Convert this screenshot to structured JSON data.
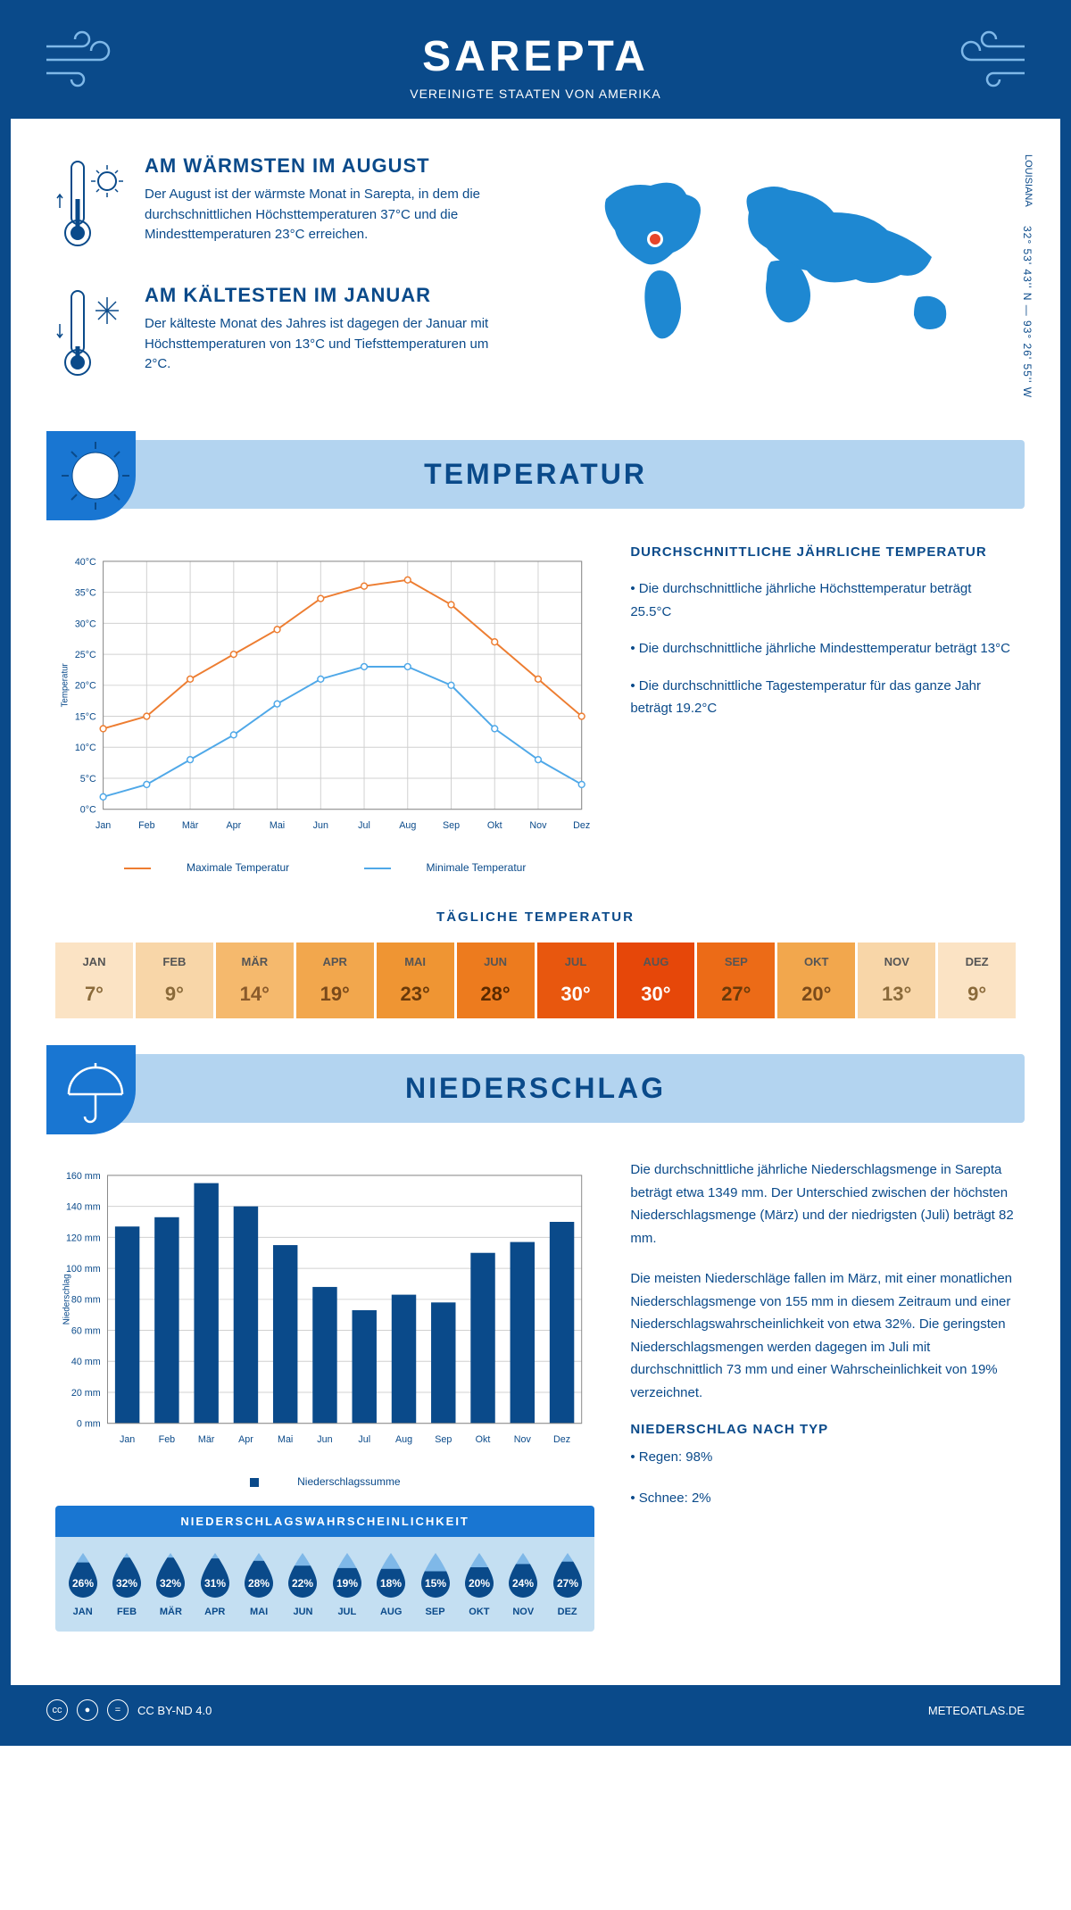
{
  "header": {
    "title": "SAREPTA",
    "subtitle": "VEREINIGTE STAATEN VON AMERIKA"
  },
  "intro": {
    "warmest": {
      "heading": "AM WÄRMSTEN IM AUGUST",
      "text": "Der August ist der wärmste Monat in Sarepta, in dem die durchschnittlichen Höchsttemperaturen 37°C und die Mindesttemperaturen 23°C erreichen."
    },
    "coldest": {
      "heading": "AM KÄLTESTEN IM JANUAR",
      "text": "Der kälteste Monat des Jahres ist dagegen der Januar mit Höchsttemperaturen von 13°C und Tiefsttemperaturen um 2°C."
    },
    "region": "LOUISIANA",
    "coords": "32° 53' 43'' N — 93° 26' 55'' W"
  },
  "temperature": {
    "section_title": "TEMPERATUR",
    "info_heading": "DURCHSCHNITTLICHE JÄHRLICHE TEMPERATUR",
    "bullet1": "• Die durchschnittliche jährliche Höchsttemperatur beträgt 25.5°C",
    "bullet2": "• Die durchschnittliche jährliche Mindesttemperatur beträgt 13°C",
    "bullet3": "• Die durchschnittliche Tagestemperatur für das ganze Jahr beträgt 19.2°C",
    "chart": {
      "type": "line",
      "months": [
        "Jan",
        "Feb",
        "Mär",
        "Apr",
        "Mai",
        "Jun",
        "Jul",
        "Aug",
        "Sep",
        "Okt",
        "Nov",
        "Dez"
      ],
      "max_values": [
        13,
        15,
        21,
        25,
        29,
        34,
        36,
        37,
        33,
        27,
        21,
        15
      ],
      "min_values": [
        2,
        4,
        8,
        12,
        17,
        21,
        23,
        23,
        20,
        13,
        8,
        4
      ],
      "max_color": "#ed7d31",
      "min_color": "#4fa8e8",
      "grid_color": "#d0d0d0",
      "ylim": [
        0,
        40
      ],
      "ytick_step": 5,
      "ylabel": "Temperatur",
      "max_label": "Maximale Temperatur",
      "min_label": "Minimale Temperatur"
    },
    "daily": {
      "heading": "TÄGLICHE TEMPERATUR",
      "months": [
        "JAN",
        "FEB",
        "MÄR",
        "APR",
        "MAI",
        "JUN",
        "JUL",
        "AUG",
        "SEP",
        "OKT",
        "NOV",
        "DEZ"
      ],
      "values": [
        "7°",
        "9°",
        "14°",
        "19°",
        "23°",
        "28°",
        "30°",
        "30°",
        "27°",
        "20°",
        "13°",
        "9°"
      ],
      "bg_colors": [
        "#fbe3c4",
        "#f8d6a8",
        "#f5b96d",
        "#f2a74d",
        "#ef9533",
        "#ed7b1e",
        "#e8570e",
        "#e64709",
        "#ec6b17",
        "#f2a74d",
        "#f8d6a8",
        "#fbe3c4"
      ],
      "text_colors": [
        "#8a6a3a",
        "#8a6a3a",
        "#8a5a2a",
        "#7a4a1a",
        "#6a3a0a",
        "#5a2a00",
        "#ffffff",
        "#ffffff",
        "#6a3a0a",
        "#7a4a1a",
        "#8a6a3a",
        "#8a6a3a"
      ]
    }
  },
  "precipitation": {
    "section_title": "NIEDERSCHLAG",
    "para1": "Die durchschnittliche jährliche Niederschlagsmenge in Sarepta beträgt etwa 1349 mm. Der Unterschied zwischen der höchsten Niederschlagsmenge (März) und der niedrigsten (Juli) beträgt 82 mm.",
    "para2": "Die meisten Niederschläge fallen im März, mit einer monatlichen Niederschlagsmenge von 155 mm in diesem Zeitraum und einer Niederschlagswahrscheinlichkeit von etwa 32%. Die geringsten Niederschlagsmengen werden dagegen im Juli mit durchschnittlich 73 mm und einer Wahrscheinlichkeit von 19% verzeichnet.",
    "type_heading": "NIEDERSCHLAG NACH TYP",
    "type_rain": "• Regen: 98%",
    "type_snow": "• Schnee: 2%",
    "chart": {
      "type": "bar",
      "months": [
        "Jan",
        "Feb",
        "Mär",
        "Apr",
        "Mai",
        "Jun",
        "Jul",
        "Aug",
        "Sep",
        "Okt",
        "Nov",
        "Dez"
      ],
      "values": [
        127,
        133,
        155,
        140,
        115,
        88,
        73,
        83,
        78,
        110,
        117,
        130
      ],
      "bar_color": "#0a4a8a",
      "grid_color": "#d0d0d0",
      "ylim": [
        0,
        160
      ],
      "ytick_step": 20,
      "ylabel": "Niederschlag",
      "legend_label": "Niederschlagssumme"
    },
    "probability": {
      "heading": "NIEDERSCHLAGSWAHRSCHEINLICHKEIT",
      "months": [
        "JAN",
        "FEB",
        "MÄR",
        "APR",
        "MAI",
        "JUN",
        "JUL",
        "AUG",
        "SEP",
        "OKT",
        "NOV",
        "DEZ"
      ],
      "values": [
        "26%",
        "32%",
        "32%",
        "31%",
        "28%",
        "22%",
        "19%",
        "18%",
        "15%",
        "20%",
        "24%",
        "27%"
      ],
      "drop_dark": "#0a4a8a",
      "drop_light": "#7fb8e8"
    }
  },
  "footer": {
    "license": "CC BY-ND 4.0",
    "site": "METEOATLAS.DE"
  },
  "colors": {
    "primary": "#0a4a8a",
    "accent": "#1976d2",
    "light_blue": "#b3d4f0"
  }
}
